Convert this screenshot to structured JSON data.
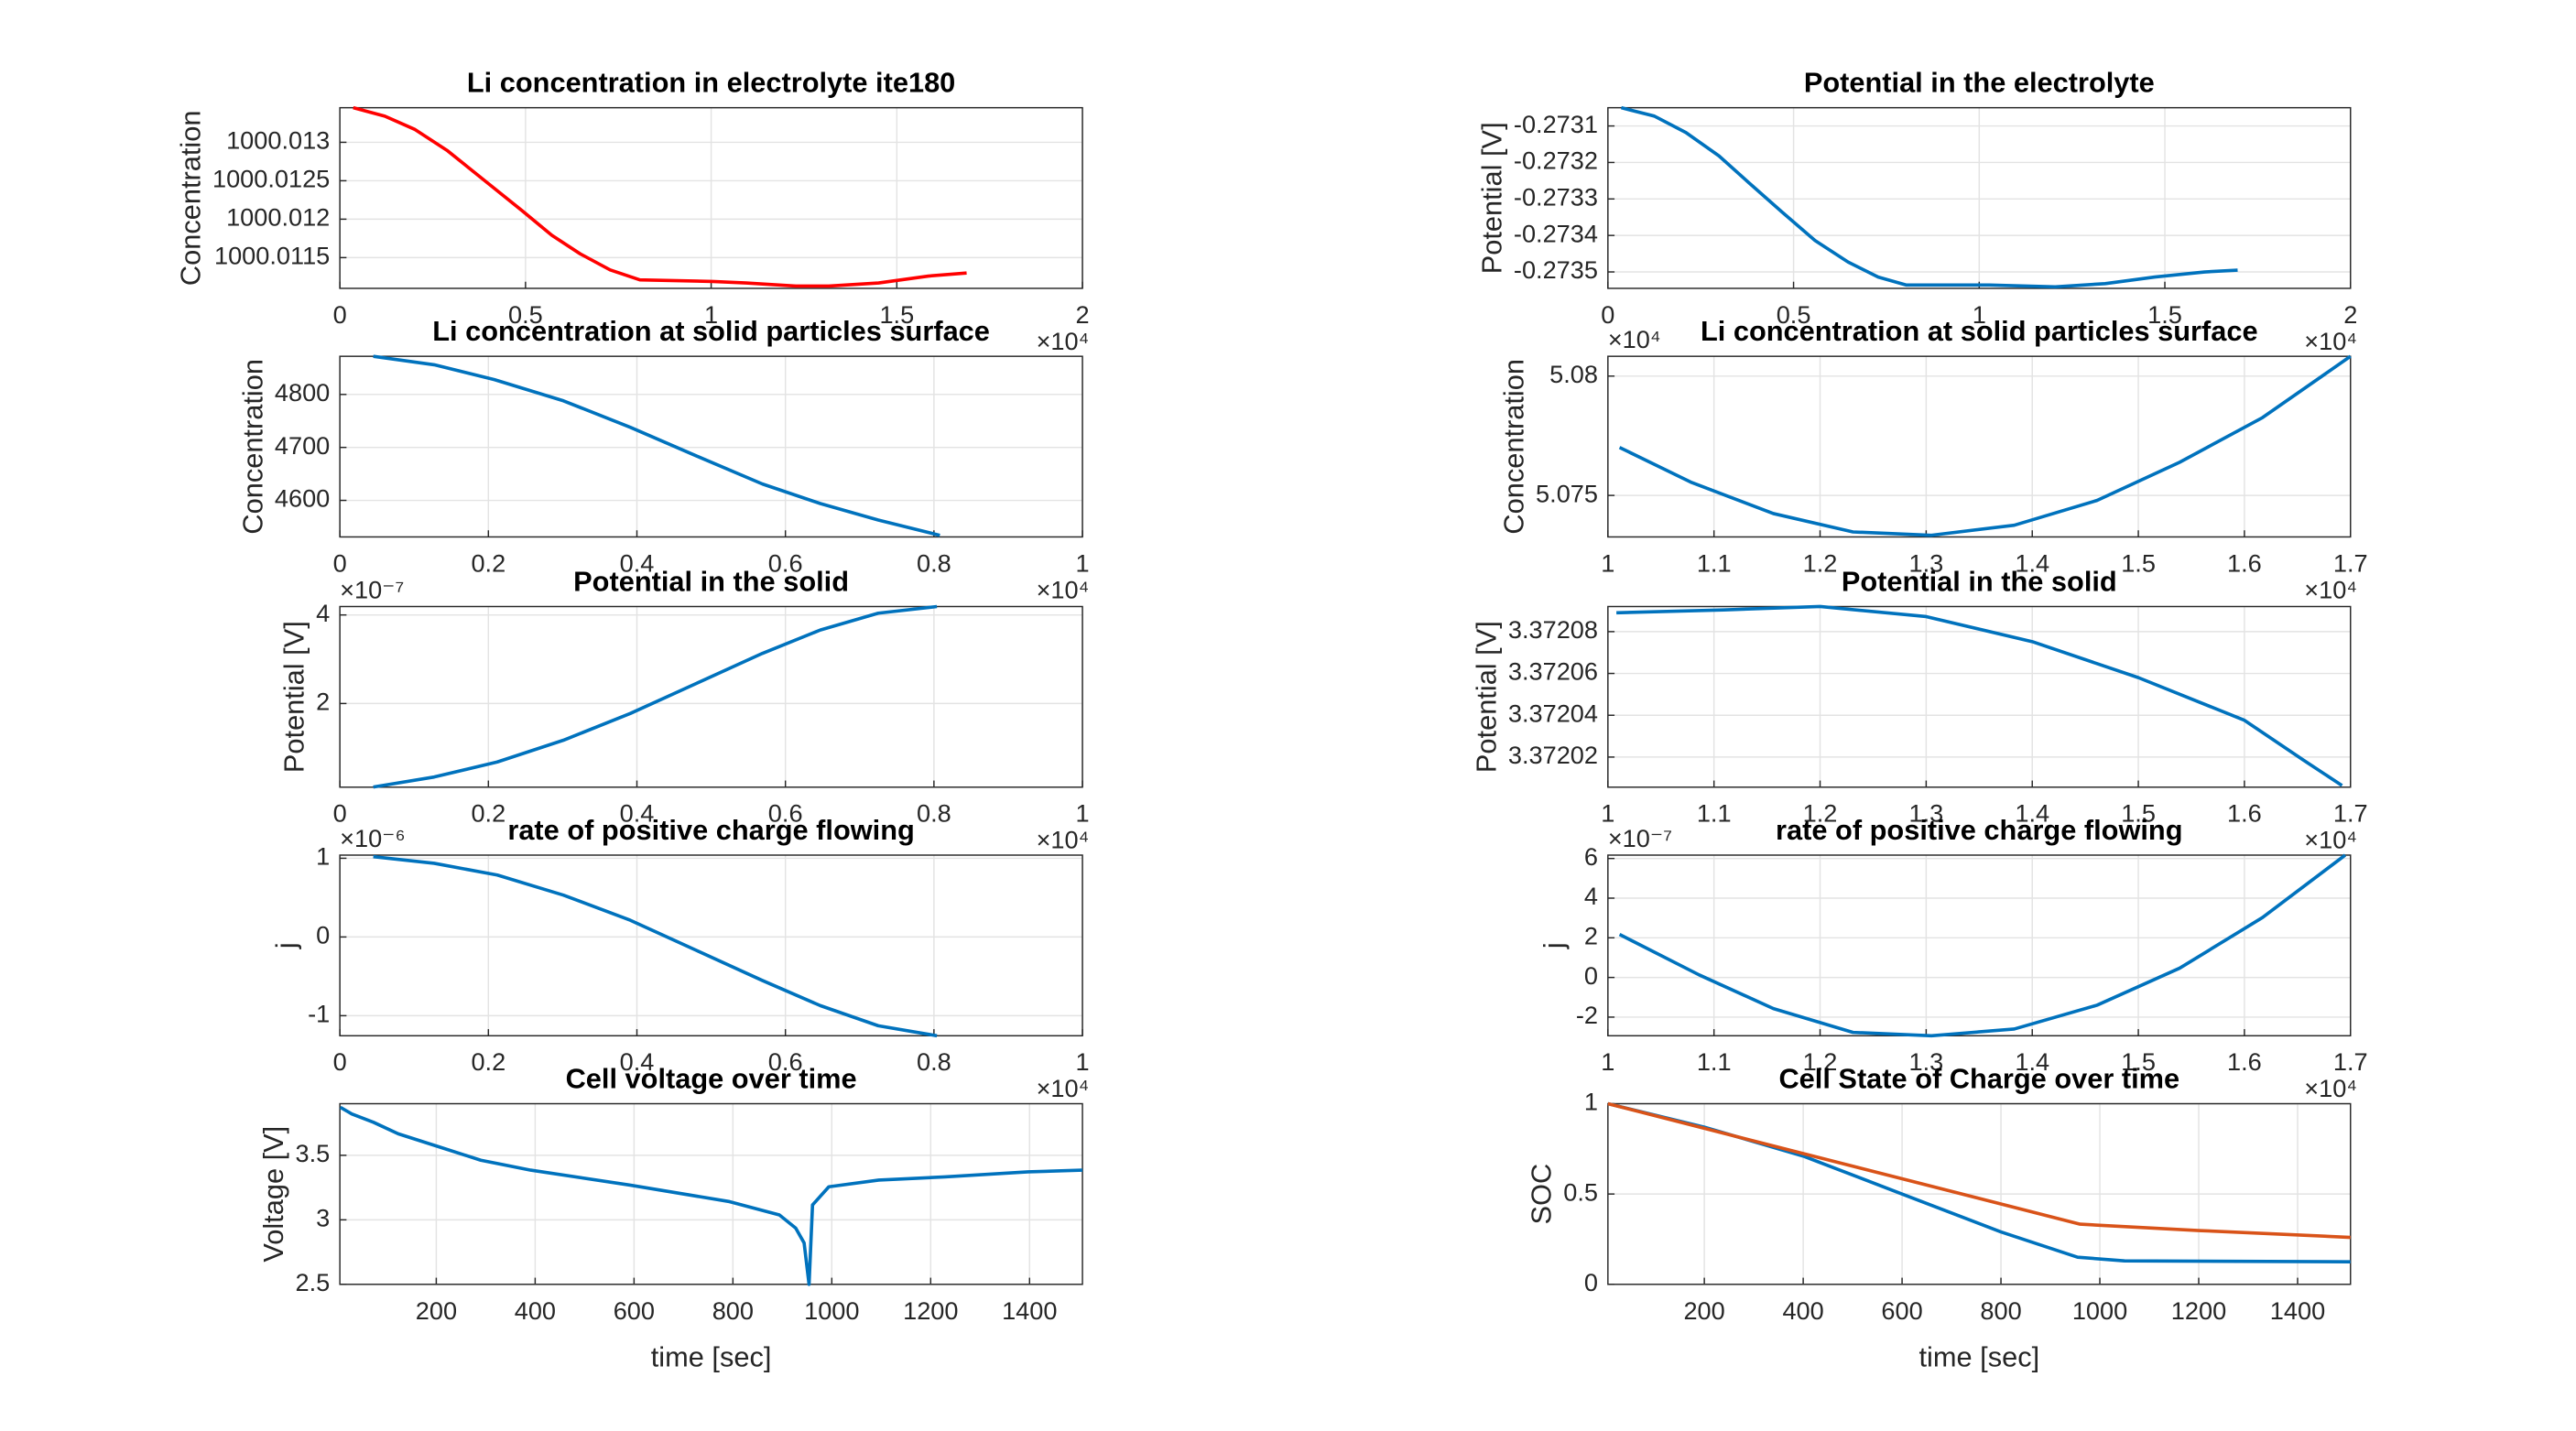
{
  "chart_data": [
    {
      "type": "line",
      "title": "Li concentration in electrolyte ite180",
      "ylabel": "Concentration",
      "grid": true,
      "xlim": [
        0,
        2
      ],
      "xticks": [
        0,
        0.5,
        1,
        1.5,
        2
      ],
      "x_exponent": "×10⁴",
      "ylim": [
        1000.0111,
        1000.01345
      ],
      "yticks": [
        1000.0115,
        1000.012,
        1000.0125,
        1000.013
      ],
      "series": [
        {
          "color": "#ff0000",
          "x": [
            0.036,
            0.121,
            0.201,
            0.29,
            0.393,
            0.491,
            0.571,
            0.647,
            0.728,
            0.808,
            1.004,
            1.094,
            1.228,
            1.317,
            1.451,
            1.585,
            1.688
          ],
          "values": [
            1000.01345,
            1000.01334,
            1000.01317,
            1000.01289,
            1000.01249,
            1000.01211,
            1000.01179,
            1000.01155,
            1000.01134,
            1000.01121,
            1000.01119,
            1000.01117,
            1000.01113,
            1000.01113,
            1000.01117,
            1000.01126,
            1000.0113
          ]
        }
      ]
    },
    {
      "type": "line",
      "title": "Potential in the electrolyte",
      "ylabel": "Potential [V]",
      "grid": true,
      "xlim": [
        0,
        2
      ],
      "xticks": [
        0,
        0.5,
        1,
        1.5,
        2
      ],
      "x_exponent": "×10⁴",
      "ylim": [
        -0.273545,
        -0.27305
      ],
      "yticks": [
        -0.2735,
        -0.2734,
        -0.2733,
        -0.2732,
        -0.2731
      ],
      "series": [
        {
          "color": "#0072bd",
          "x": [
            0.036,
            0.125,
            0.21,
            0.299,
            0.379,
            0.469,
            0.558,
            0.647,
            0.728,
            0.804,
            1.027,
            1.205,
            1.339,
            1.473,
            1.607,
            1.696
          ],
          "values": [
            -0.27305,
            -0.273073,
            -0.273118,
            -0.273182,
            -0.273255,
            -0.273336,
            -0.273414,
            -0.273473,
            -0.273514,
            -0.273536,
            -0.273536,
            -0.273541,
            -0.273532,
            -0.273514,
            -0.2735,
            -0.273495
          ]
        }
      ]
    },
    {
      "type": "line",
      "title": "Li concentration at solid particles surface",
      "ylabel": "Concentration",
      "grid": true,
      "xlim": [
        0,
        1
      ],
      "xticks": [
        0,
        0.2,
        0.4,
        0.6,
        0.8,
        1
      ],
      "x_exponent": "×10⁴",
      "ylim": [
        4531,
        4872
      ],
      "yticks": [
        4600,
        4700,
        4800
      ],
      "series": [
        {
          "color": "#0072bd",
          "x": [
            0.045,
            0.127,
            0.208,
            0.301,
            0.391,
            0.48,
            0.569,
            0.647,
            0.725,
            0.808
          ],
          "values": [
            4872,
            4856,
            4828,
            4788,
            4738,
            4684,
            4631,
            4594,
            4563,
            4534
          ]
        }
      ]
    },
    {
      "type": "line",
      "title": "Li concentration at solid particles surface",
      "ylabel": "Concentration",
      "grid": true,
      "xlim": [
        1,
        1.7
      ],
      "xticks": [
        1,
        1.1,
        1.2,
        1.3,
        1.4,
        1.5,
        1.6,
        1.7
      ],
      "x_exponent": "×10⁴",
      "ylim": [
        5.07326,
        5.08083
      ],
      "yticks": [
        5.075,
        5.08
      ],
      "y_exponent": "×10⁴",
      "series": [
        {
          "color": "#0072bd",
          "x": [
            1.011,
            1.078,
            1.156,
            1.231,
            1.305,
            1.383,
            1.461,
            1.539,
            1.617,
            1.7
          ],
          "values": [
            5.07701,
            5.07556,
            5.07424,
            5.07347,
            5.07333,
            5.07375,
            5.07479,
            5.07639,
            5.07826,
            5.08083
          ]
        }
      ]
    },
    {
      "type": "line",
      "title": "Potential in the solid",
      "ylabel": "Potential [V]",
      "grid": true,
      "xlim": [
        0,
        1
      ],
      "xticks": [
        0,
        0.2,
        0.4,
        0.6,
        0.8,
        1
      ],
      "x_exponent": "×10⁴",
      "ylim": [
        0.11,
        4.19
      ],
      "yticks": [
        2,
        4
      ],
      "y_exponent": "×10⁻⁷",
      "series": [
        {
          "color": "#0072bd",
          "x": [
            0.045,
            0.127,
            0.212,
            0.301,
            0.391,
            0.48,
            0.569,
            0.647,
            0.725,
            0.804
          ],
          "values": [
            0.113,
            0.34,
            0.679,
            1.17,
            1.774,
            2.453,
            3.132,
            3.66,
            4.04,
            4.19
          ]
        }
      ]
    },
    {
      "type": "line",
      "title": "Potential in the solid",
      "ylabel": "Potential [V]",
      "grid": true,
      "xlim": [
        1,
        1.7
      ],
      "xticks": [
        1,
        1.1,
        1.2,
        1.3,
        1.4,
        1.5,
        1.6,
        1.7
      ],
      "x_exponent": "×10⁴",
      "ylim": [
        3.3720056,
        3.372092
      ],
      "yticks": [
        3.37202,
        3.37204,
        3.37206,
        3.37208
      ],
      "series": [
        {
          "color": "#0072bd",
          "x": [
            1.008,
            1.109,
            1.2,
            1.3,
            1.4,
            1.5,
            1.6,
            1.656,
            1.692
          ],
          "values": [
            3.372089,
            3.3720904,
            3.372092,
            3.3720872,
            3.3720752,
            3.372058,
            3.3720376,
            3.3720184,
            3.3720064
          ]
        }
      ]
    },
    {
      "type": "line",
      "title": "rate of positive charge flowing",
      "ylabel": "j",
      "grid": true,
      "xlim": [
        0,
        1
      ],
      "xticks": [
        0,
        0.2,
        0.4,
        0.6,
        0.8,
        1
      ],
      "x_exponent": "×10⁴",
      "ylim": [
        -1.255,
        1.04
      ],
      "yticks": [
        -1,
        0,
        1
      ],
      "y_exponent": "×10⁻⁶",
      "series": [
        {
          "color": "#0072bd",
          "x": [
            0.045,
            0.127,
            0.212,
            0.301,
            0.391,
            0.48,
            0.569,
            0.647,
            0.725,
            0.804
          ],
          "values": [
            1.02,
            0.936,
            0.787,
            0.532,
            0.213,
            -0.17,
            -0.553,
            -0.872,
            -1.128,
            -1.255
          ]
        }
      ]
    },
    {
      "type": "line",
      "title": "rate of positive charge flowing",
      "ylabel": "j",
      "grid": true,
      "xlim": [
        1,
        1.7
      ],
      "xticks": [
        1,
        1.1,
        1.2,
        1.3,
        1.4,
        1.5,
        1.6,
        1.7
      ],
      "x_exponent": "×10⁴",
      "ylim": [
        -2.94,
        6.17
      ],
      "yticks": [
        -2,
        0,
        2,
        4,
        6
      ],
      "y_exponent": "×10⁻⁷",
      "series": [
        {
          "color": "#0072bd",
          "x": [
            1.011,
            1.086,
            1.156,
            1.231,
            1.305,
            1.383,
            1.461,
            1.539,
            1.617,
            1.695
          ],
          "values": [
            2.17,
            0.13,
            -1.57,
            -2.77,
            -2.94,
            -2.6,
            -1.4,
            0.47,
            3.02,
            6.17
          ]
        }
      ]
    },
    {
      "type": "line",
      "title": "Cell voltage over time",
      "ylabel": "Voltage [V]",
      "xlabel": "time [sec]",
      "grid": true,
      "xlim": [
        5,
        1507
      ],
      "xticks": [
        200,
        400,
        600,
        800,
        1000,
        1200,
        1400
      ],
      "ylim": [
        2.5,
        3.9
      ],
      "yticks": [
        2.5,
        3,
        3.5
      ],
      "series": [
        {
          "color": "#0072bd",
          "x": [
            6,
            29,
            73,
            123,
            207,
            290,
            391,
            592,
            793,
            894,
            927,
            944,
            954,
            961,
            994,
            1095,
            1229,
            1397,
            1507
          ],
          "values": [
            3.872,
            3.821,
            3.756,
            3.667,
            3.564,
            3.462,
            3.385,
            3.269,
            3.141,
            3.038,
            2.936,
            2.821,
            2.5,
            3.115,
            3.256,
            3.308,
            3.333,
            3.372,
            3.385
          ]
        }
      ]
    },
    {
      "type": "line",
      "title": "Cell State of Charge over time",
      "ylabel": "SOC",
      "xlabel": "time [sec]",
      "grid": true,
      "xlim": [
        5,
        1507
      ],
      "xticks": [
        200,
        400,
        600,
        800,
        1000,
        1200,
        1400
      ],
      "ylim": [
        0,
        1
      ],
      "yticks": [
        0,
        0.5,
        1
      ],
      "series": [
        {
          "color": "#0072bd",
          "x": [
            5,
            200,
            400,
            600,
            800,
            955,
            1050,
            1507
          ],
          "values": [
            1,
            0.87,
            0.71,
            0.5,
            0.29,
            0.15,
            0.13,
            0.125
          ]
        },
        {
          "color": "#d95319",
          "x": [
            5,
            960,
            1200,
            1507
          ],
          "values": [
            1,
            0.333,
            0.298,
            0.26
          ]
        }
      ]
    }
  ]
}
